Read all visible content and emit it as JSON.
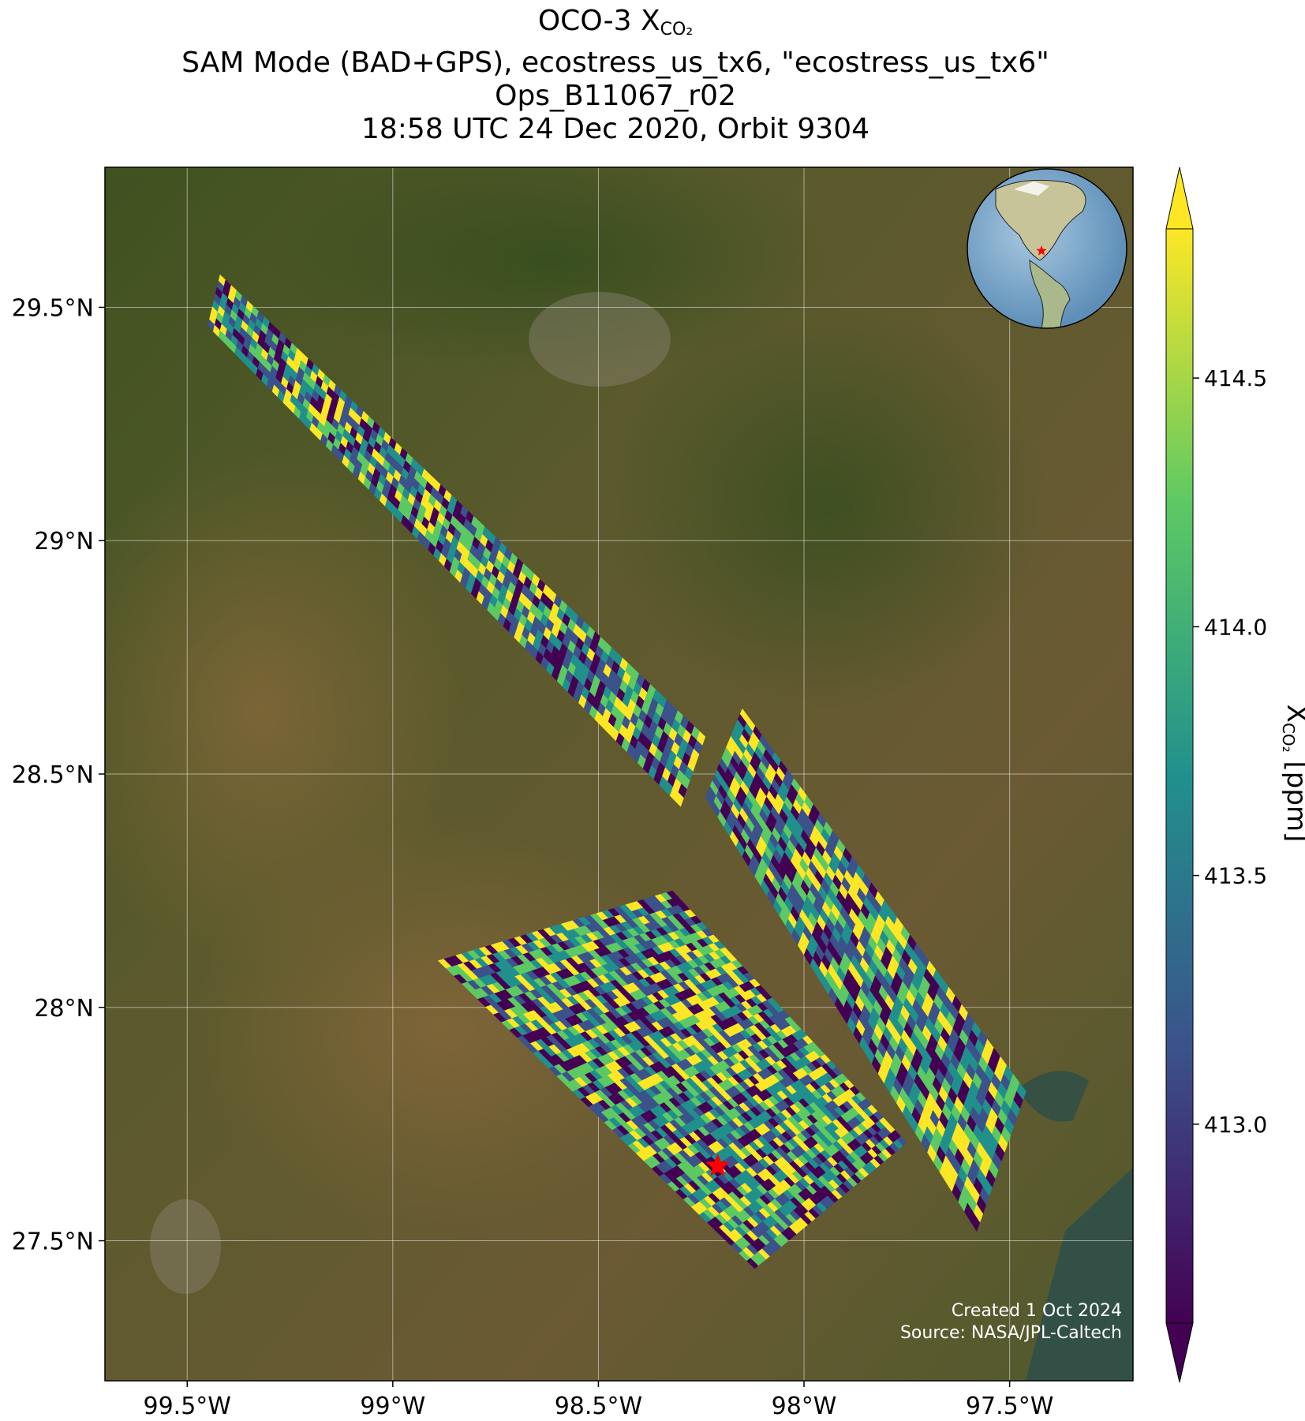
{
  "title": {
    "line1_prefix": "OCO-3 X",
    "line1_sub": "CO₂",
    "line2": "SAM Mode (BAD+GPS), ecostress_us_tx6, \"ecostress_us_tx6\"",
    "line3": "Ops_B11067_r02",
    "line4": "18:58 UTC 24 Dec 2020, Orbit 9304"
  },
  "footer": {
    "created": "Created 1 Oct 2024",
    "source": "Source: NASA/JPL-Caltech"
  },
  "colors": {
    "viridis": [
      "#440154",
      "#3b528b",
      "#21908d",
      "#5dc963",
      "#fde725"
    ],
    "marker": "#ff0000",
    "grid": "#ffffff"
  },
  "chart_data": {
    "type": "heatmap",
    "map": {
      "projection": "geographic",
      "lon_range": [
        -99.7,
        -97.2
      ],
      "lat_range": [
        27.2,
        29.8
      ],
      "x_ticks": [
        "99.5°W",
        "99°W",
        "98.5°W",
        "98°W",
        "97.5°W"
      ],
      "x_tick_values": [
        -99.5,
        -99.0,
        -98.5,
        -98.0,
        -97.5
      ],
      "y_ticks": [
        "29.5°N",
        "29°N",
        "28.5°N",
        "28°N",
        "27.5°N"
      ],
      "y_tick_values": [
        29.5,
        29.0,
        28.5,
        28.0,
        27.5
      ],
      "grid": true,
      "basemap": "satellite imagery",
      "inset": "globe (North America) with target location",
      "target": {
        "lon": -98.21,
        "lat": 27.66
      }
    },
    "swaths": [
      {
        "name": "northwest strip",
        "corners": [
          [
            -99.42,
            29.57
          ],
          [
            -99.45,
            29.46
          ],
          [
            -98.3,
            28.43
          ],
          [
            -98.24,
            28.58
          ]
        ]
      },
      {
        "name": "east block",
        "corners": [
          [
            -98.15,
            28.64
          ],
          [
            -98.24,
            28.45
          ],
          [
            -97.58,
            27.52
          ],
          [
            -97.46,
            27.82
          ]
        ]
      },
      {
        "name": "southwest block",
        "corners": [
          [
            -98.89,
            28.1
          ],
          [
            -98.32,
            28.25
          ],
          [
            -97.75,
            27.71
          ],
          [
            -98.12,
            27.44
          ]
        ]
      }
    ],
    "colorbar": {
      "label_prefix": "X",
      "label_sub": "CO₂",
      "label_suffix": " [ppm]",
      "range": [
        412.6,
        414.8
      ],
      "ticks": [
        413.0,
        413.5,
        414.0,
        414.5
      ],
      "tick_labels": [
        "413.0",
        "413.5",
        "414.0",
        "414.5"
      ],
      "extend": "both",
      "colormap": "viridis"
    }
  }
}
